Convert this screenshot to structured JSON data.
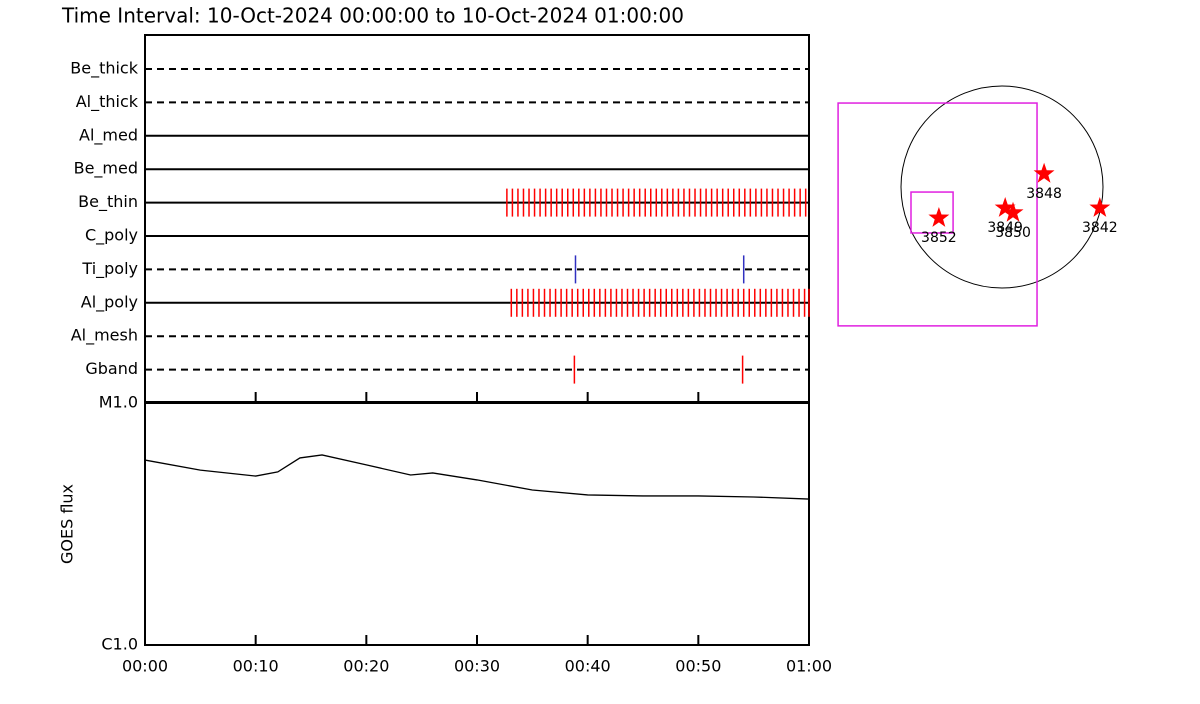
{
  "title": "Time Interval: 10-Oct-2024 00:00:00 to 10-Oct-2024 01:00:00",
  "chart_data": [
    {
      "type": "timeline",
      "xlim": [
        0,
        60
      ],
      "xticks": [
        {
          "value": 0,
          "label": "00:00"
        },
        {
          "value": 10,
          "label": "00:10"
        },
        {
          "value": 20,
          "label": "00:20"
        },
        {
          "value": 30,
          "label": "00:30"
        },
        {
          "value": 40,
          "label": "00:40"
        },
        {
          "value": 50,
          "label": "00:50"
        },
        {
          "value": 60,
          "label": "01:00"
        }
      ],
      "rows": [
        {
          "name": "Be_thick",
          "style": "dashed",
          "color": "#ff0000",
          "marks": []
        },
        {
          "name": "Al_thick",
          "style": "dashed",
          "color": "#ff0000",
          "marks": []
        },
        {
          "name": "Al_med",
          "style": "solid",
          "color": "#ff0000",
          "marks": []
        },
        {
          "name": "Be_med",
          "style": "solid",
          "color": "#ff0000",
          "marks": []
        },
        {
          "name": "Be_thin",
          "style": "solid",
          "color": "#ff0000",
          "marks": [
            32.7,
            33.2,
            33.7,
            34.2,
            34.7,
            35.2,
            35.7,
            36.2,
            36.7,
            37.2,
            37.7,
            38.2,
            38.7,
            39.2,
            39.7,
            40.2,
            40.7,
            41.2,
            41.7,
            42.2,
            42.7,
            43.2,
            43.7,
            44.2,
            44.7,
            45.2,
            45.7,
            46.2,
            46.7,
            47.2,
            47.7,
            48.2,
            48.7,
            49.2,
            49.7,
            50.2,
            50.7,
            51.2,
            51.7,
            52.2,
            52.7,
            53.2,
            53.7,
            54.2,
            54.7,
            55.2,
            55.7,
            56.2,
            56.7,
            57.2,
            57.7,
            58.2,
            58.7,
            59.2,
            59.7
          ]
        },
        {
          "name": "C_poly",
          "style": "solid",
          "color": "#ff0000",
          "marks": []
        },
        {
          "name": "Ti_poly",
          "style": "dashed",
          "color": "#3030c0",
          "marks": [
            38.9,
            54.1
          ]
        },
        {
          "name": "Al_poly",
          "style": "solid",
          "color": "#ff0000",
          "marks": [
            33.1,
            33.6,
            34.1,
            34.6,
            35.1,
            35.6,
            36.1,
            36.6,
            37.1,
            37.6,
            38.1,
            38.6,
            39.1,
            39.6,
            40.1,
            40.6,
            41.1,
            41.6,
            42.1,
            42.6,
            43.1,
            43.6,
            44.1,
            44.6,
            45.1,
            45.6,
            46.1,
            46.6,
            47.1,
            47.6,
            48.1,
            48.6,
            49.1,
            49.6,
            50.1,
            50.6,
            51.1,
            51.6,
            52.1,
            52.6,
            53.1,
            53.6,
            54.1,
            54.6,
            55.1,
            55.6,
            56.1,
            56.6,
            57.1,
            57.6,
            58.1,
            58.6,
            59.1,
            59.6,
            60.0
          ]
        },
        {
          "name": "Al_mesh",
          "style": "dashed",
          "color": "#ff0000",
          "marks": []
        },
        {
          "name": "Gband",
          "style": "dashed",
          "color": "#ff0000",
          "marks": [
            38.8,
            54.0
          ]
        }
      ]
    },
    {
      "type": "line",
      "y_label": "GOES flux",
      "log_scale": true,
      "ylim": [
        1e-06,
        1e-05
      ],
      "yticks": [
        {
          "value": 1e-06,
          "label": "C1.0"
        },
        {
          "value": 1e-05,
          "label": "M1.0"
        }
      ],
      "xlim": [
        0,
        60
      ],
      "x": [
        0,
        5,
        10,
        12,
        14,
        16,
        20,
        24,
        26,
        30,
        35,
        40,
        45,
        50,
        55,
        60
      ],
      "values": [
        5.81e-06,
        5.28e-06,
        4.99e-06,
        5.19e-06,
        5.93e-06,
        6.1e-06,
        5.55e-06,
        5.04e-06,
        5.14e-06,
        4.81e-06,
        4.37e-06,
        4.17e-06,
        4.13e-06,
        4.13e-06,
        4.09e-06,
        4.01e-06
      ],
      "color": "#000000"
    },
    {
      "type": "disk",
      "rsun": 960,
      "star_color": "#ff0000",
      "fov_color": "#e020e0",
      "fov": [
        {
          "x": [
            -1558,
            333
          ],
          "y": [
            798,
            -1320
          ]
        },
        {
          "x": [
            -865,
            -465
          ],
          "y": [
            -48,
            -437
          ]
        }
      ],
      "regions": [
        {
          "name": "3852",
          "x": -600,
          "y": -295
        },
        {
          "name": "3849",
          "x": 30,
          "y": -200
        },
        {
          "name": "3850",
          "x": 105,
          "y": -245
        },
        {
          "name": "3848",
          "x": 400,
          "y": 125
        },
        {
          "name": "3842",
          "x": 930,
          "y": -200
        }
      ]
    }
  ]
}
